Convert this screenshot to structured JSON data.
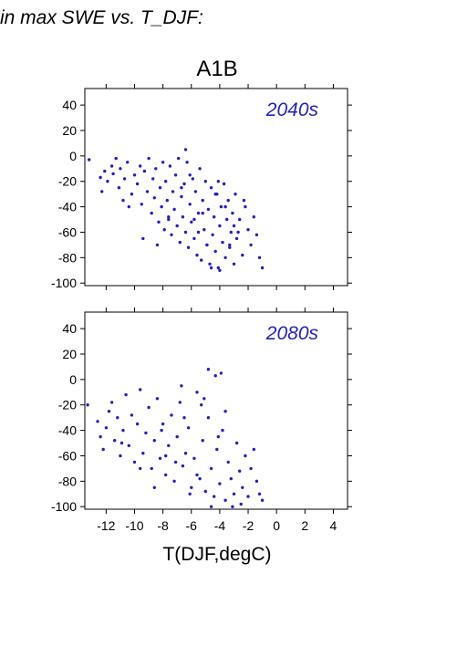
{
  "page_title": "in max SWE vs. T_DJF:",
  "scenario": "A1B",
  "chart_data": [
    {
      "type": "scatter",
      "label": "2040s",
      "xlabel": "T(DJF,degC)",
      "xlim": [
        -13.5,
        5
      ],
      "ylim": [
        -102,
        53
      ],
      "x_ticks": [
        -12,
        -10,
        -8,
        -6,
        -4,
        -2,
        0,
        2,
        4
      ],
      "y_ticks": [
        -100,
        -80,
        -60,
        -40,
        -20,
        0,
        20,
        40
      ],
      "y_tick_labels": [
        "-100",
        "-80",
        "-60",
        "-40",
        "-20",
        "0",
        "20",
        "40"
      ],
      "point_color": "#2222bb",
      "x": [
        -13.2,
        -12.4,
        -12.3,
        -12.1,
        -11.9,
        -11.6,
        -11.5,
        -11.3,
        -11.1,
        -11.0,
        -10.8,
        -10.7,
        -10.5,
        -10.2,
        -10.0,
        -9.8,
        -9.6,
        -9.5,
        -9.3,
        -9.1,
        -9.0,
        -8.8,
        -8.7,
        -8.6,
        -8.5,
        -8.3,
        -8.2,
        -8.1,
        -8.0,
        -7.9,
        -7.8,
        -7.7,
        -7.6,
        -7.5,
        -7.4,
        -7.3,
        -7.2,
        -7.1,
        -7.0,
        -6.9,
        -6.8,
        -6.7,
        -6.6,
        -6.5,
        -6.4,
        -6.3,
        -6.2,
        -6.1,
        -6.0,
        -5.9,
        -5.8,
        -5.7,
        -5.6,
        -5.5,
        -5.4,
        -5.3,
        -5.2,
        -5.1,
        -5.0,
        -4.9,
        -4.8,
        -4.7,
        -4.6,
        -4.5,
        -4.4,
        -4.3,
        -4.2,
        -4.1,
        -4.0,
        -3.9,
        -3.8,
        -3.7,
        -3.6,
        -3.5,
        -3.4,
        -3.3,
        -3.2,
        -3.1,
        -3.0,
        -2.9,
        -2.8,
        -2.6,
        -2.4,
        -2.2,
        -2.0,
        -1.8,
        -1.6,
        -1.4,
        -1.2,
        -1.0,
        -6.4,
        -6.1,
        -5.5,
        -4.6,
        -4.0,
        -3.3,
        -7.6,
        -8.4,
        -9.4,
        -10.4,
        -5.2,
        -4.3,
        -3.0,
        -2.3,
        -6.7,
        -5.8,
        -4.9,
        -4.1,
        -3.6,
        -2.7
      ],
      "y": [
        -3,
        -17,
        -28,
        -12,
        -20,
        -8,
        -14,
        -2,
        -25,
        -10,
        -35,
        -18,
        -5,
        -30,
        -15,
        -22,
        -8,
        -38,
        -12,
        -28,
        -2,
        -45,
        -18,
        -33,
        -10,
        -52,
        -25,
        -40,
        -5,
        -58,
        -20,
        -35,
        -48,
        -8,
        -62,
        -28,
        -42,
        -15,
        -55,
        -2,
        -68,
        -32,
        -48,
        -22,
        -60,
        -5,
        -72,
        -38,
        -52,
        -18,
        -65,
        -28,
        -78,
        -45,
        -10,
        -82,
        -35,
        -58,
        -20,
        -70,
        -42,
        -85,
        -25,
        -62,
        -48,
        -75,
        -30,
        -88,
        -55,
        -40,
        -68,
        -22,
        -80,
        -50,
        -35,
        -72,
        -60,
        -45,
        -85,
        -30,
        -65,
        -50,
        -78,
        -40,
        -58,
        -70,
        -48,
        -62,
        -80,
        -88,
        5,
        -15,
        -60,
        -88,
        -90,
        -70,
        -50,
        -70,
        -65,
        -40,
        -45,
        -30,
        -55,
        -35,
        -25,
        -50,
        -70,
        -20,
        -40,
        -60
      ]
    },
    {
      "type": "scatter",
      "label": "2080s",
      "xlabel": "T(DJF,degC)",
      "xlim": [
        -13.5,
        5
      ],
      "ylim": [
        -102,
        53
      ],
      "x_ticks": [
        -12,
        -10,
        -8,
        -6,
        -4,
        -2,
        0,
        2,
        4
      ],
      "x_tick_labels": [
        "-12",
        "-10",
        "-8",
        "-6",
        "-4",
        "-2",
        "0",
        "2",
        "4"
      ],
      "y_ticks": [
        -100,
        -80,
        -60,
        -40,
        -20,
        0,
        20,
        40
      ],
      "y_tick_labels": [
        "-100",
        "-80",
        "-60",
        "-40",
        "-20",
        "0",
        "20",
        "40"
      ],
      "point_color": "#2222bb",
      "x": [
        -13.3,
        -12.6,
        -12.4,
        -12.2,
        -12.0,
        -11.8,
        -11.6,
        -11.4,
        -11.2,
        -11.0,
        -10.8,
        -10.6,
        -10.4,
        -10.2,
        -10.0,
        -9.8,
        -9.6,
        -9.4,
        -9.2,
        -9.0,
        -8.8,
        -8.6,
        -8.4,
        -8.2,
        -8.0,
        -7.8,
        -7.6,
        -7.4,
        -7.2,
        -7.0,
        -6.8,
        -6.6,
        -6.4,
        -6.2,
        -6.0,
        -5.8,
        -5.6,
        -5.4,
        -5.2,
        -5.0,
        -4.8,
        -4.6,
        -4.4,
        -4.2,
        -4.0,
        -3.8,
        -3.6,
        -3.4,
        -3.2,
        -3.0,
        -2.8,
        -2.6,
        -2.4,
        -2.2,
        -2.0,
        -1.8,
        -1.6,
        -1.4,
        -1.2,
        -1.0,
        -4.8,
        -4.3,
        -3.9,
        -6.7,
        -5.1,
        -3.6,
        -7.8,
        -9.6,
        -10.9,
        -8.6,
        -6.1,
        -4.6,
        -3.1,
        -2.5,
        -5.6,
        -7.1,
        -8.1,
        -6.5,
        -5.3,
        -4.1
      ],
      "y": [
        -20,
        -33,
        -45,
        -55,
        -38,
        -25,
        -18,
        -48,
        -30,
        -60,
        -40,
        -12,
        -52,
        -28,
        -65,
        -35,
        -8,
        -58,
        -42,
        -22,
        -70,
        -48,
        -15,
        -62,
        -35,
        -75,
        -52,
        -28,
        -80,
        -45,
        -18,
        -68,
        -58,
        -38,
        -85,
        -62,
        -10,
        -78,
        -48,
        -88,
        -30,
        -70,
        -92,
        -55,
        -82,
        -40,
        -95,
        -65,
        -78,
        -90,
        -50,
        -72,
        -85,
        -60,
        -92,
        -70,
        -55,
        -80,
        -90,
        -95,
        8,
        3,
        5,
        -5,
        -15,
        -25,
        -60,
        -70,
        -50,
        -85,
        -90,
        -100,
        -100,
        -98,
        -75,
        -65,
        -40,
        -30,
        -20,
        -45
      ]
    }
  ]
}
